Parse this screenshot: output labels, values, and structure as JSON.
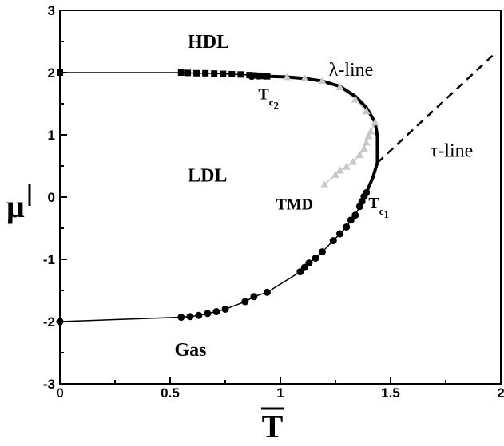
{
  "chart_data": {
    "type": "scatter",
    "title": "",
    "xlabel": "T",
    "ylabel": "μ",
    "xlim": [
      0,
      2
    ],
    "ylim": [
      -3,
      3
    ],
    "x_ticks": [
      "0",
      "0.5",
      "1",
      "1.5",
      "2"
    ],
    "y_ticks": [
      "-3",
      "-2",
      "-1",
      "0",
      "1",
      "2",
      "3"
    ],
    "grid": false,
    "legend": "none",
    "colors": {
      "main": "#000000",
      "tmd": "#c8c8c8"
    },
    "series": [
      {
        "marker": "square",
        "points": [
          [
            0.0,
            2.0
          ],
          [
            0.55,
            2.0
          ],
          [
            0.58,
            1.995
          ],
          [
            0.62,
            1.99
          ],
          [
            0.66,
            1.99
          ],
          [
            0.7,
            1.985
          ],
          [
            0.74,
            1.98
          ],
          [
            0.78,
            1.975
          ],
          [
            0.82,
            1.97
          ],
          [
            0.86,
            1.96
          ],
          [
            0.88,
            1.955
          ],
          [
            0.91,
            1.945
          ],
          [
            0.94,
            1.94
          ]
        ]
      },
      {
        "marker": "circle",
        "points": [
          [
            0.0,
            -2.0
          ],
          [
            0.55,
            -1.93
          ],
          [
            0.59,
            -1.92
          ],
          [
            0.63,
            -1.9
          ],
          [
            0.67,
            -1.87
          ],
          [
            0.71,
            -1.84
          ],
          [
            0.75,
            -1.8
          ],
          [
            0.84,
            -1.68
          ],
          [
            0.88,
            -1.6
          ],
          [
            0.94,
            -1.53
          ],
          [
            1.09,
            -1.2
          ],
          [
            1.11,
            -1.13
          ],
          [
            1.13,
            -1.06
          ],
          [
            1.16,
            -0.98
          ],
          [
            1.19,
            -0.88
          ],
          [
            1.24,
            -0.7
          ],
          [
            1.27,
            -0.59
          ],
          [
            1.3,
            -0.48
          ],
          [
            1.32,
            -0.37
          ],
          [
            1.34,
            -0.29
          ],
          [
            1.36,
            -0.15
          ],
          [
            1.37,
            -0.07
          ],
          [
            1.38,
            0.01
          ],
          [
            1.39,
            0.07
          ],
          [
            0.87,
            1.94
          ],
          [
            0.9,
            1.945
          ]
        ]
      },
      {
        "marker": "triangle",
        "points": [
          [
            1.03,
            1.93
          ],
          [
            1.11,
            1.91
          ],
          [
            1.19,
            1.87
          ],
          [
            1.27,
            1.77
          ],
          [
            1.34,
            1.57
          ],
          [
            1.39,
            1.38
          ],
          [
            1.43,
            1.2
          ],
          [
            1.41,
            1.06
          ],
          [
            1.4,
            0.98
          ],
          [
            1.39,
            0.88
          ],
          [
            1.38,
            0.78
          ],
          [
            1.36,
            0.68
          ],
          [
            1.33,
            0.57
          ],
          [
            1.3,
            0.49
          ],
          [
            1.27,
            0.43
          ],
          [
            1.25,
            0.36
          ],
          [
            1.2,
            0.2
          ]
        ]
      }
    ],
    "curves": [
      {
        "name": "first-order-line",
        "style": "solid-thick",
        "points": [
          [
            0.87,
            1.95
          ],
          [
            0.94,
            1.94
          ],
          [
            1.03,
            1.93
          ],
          [
            1.11,
            1.905
          ],
          [
            1.19,
            1.865
          ],
          [
            1.27,
            1.78
          ],
          [
            1.34,
            1.62
          ],
          [
            1.39,
            1.44
          ],
          [
            1.43,
            1.2
          ],
          [
            1.44,
            0.98
          ],
          [
            1.44,
            0.55
          ],
          [
            1.42,
            0.32
          ],
          [
            1.39,
            0.07
          ]
        ]
      },
      {
        "name": "tau-line",
        "style": "dashed",
        "points": [
          [
            1.44,
            0.55
          ],
          [
            1.98,
            2.33
          ]
        ]
      }
    ],
    "annotations": [
      {
        "text": "HDL",
        "x": 0.58,
        "y": 2.4
      },
      {
        "text": "LDL",
        "x": 0.58,
        "y": 0.25
      },
      {
        "text": "Gas",
        "x": 0.52,
        "y": -2.55
      },
      {
        "text": "λ-line",
        "x": 1.22,
        "y": 1.95
      },
      {
        "text": "τ-line",
        "x": 1.68,
        "y": 0.65
      },
      {
        "text": "TMD",
        "x": 0.98,
        "y": -0.2
      },
      {
        "text": "T",
        "sub": "c2",
        "x": 0.9,
        "y": 1.57
      },
      {
        "text": "T",
        "sub": "c1",
        "x": 1.4,
        "y": -0.18
      }
    ]
  }
}
